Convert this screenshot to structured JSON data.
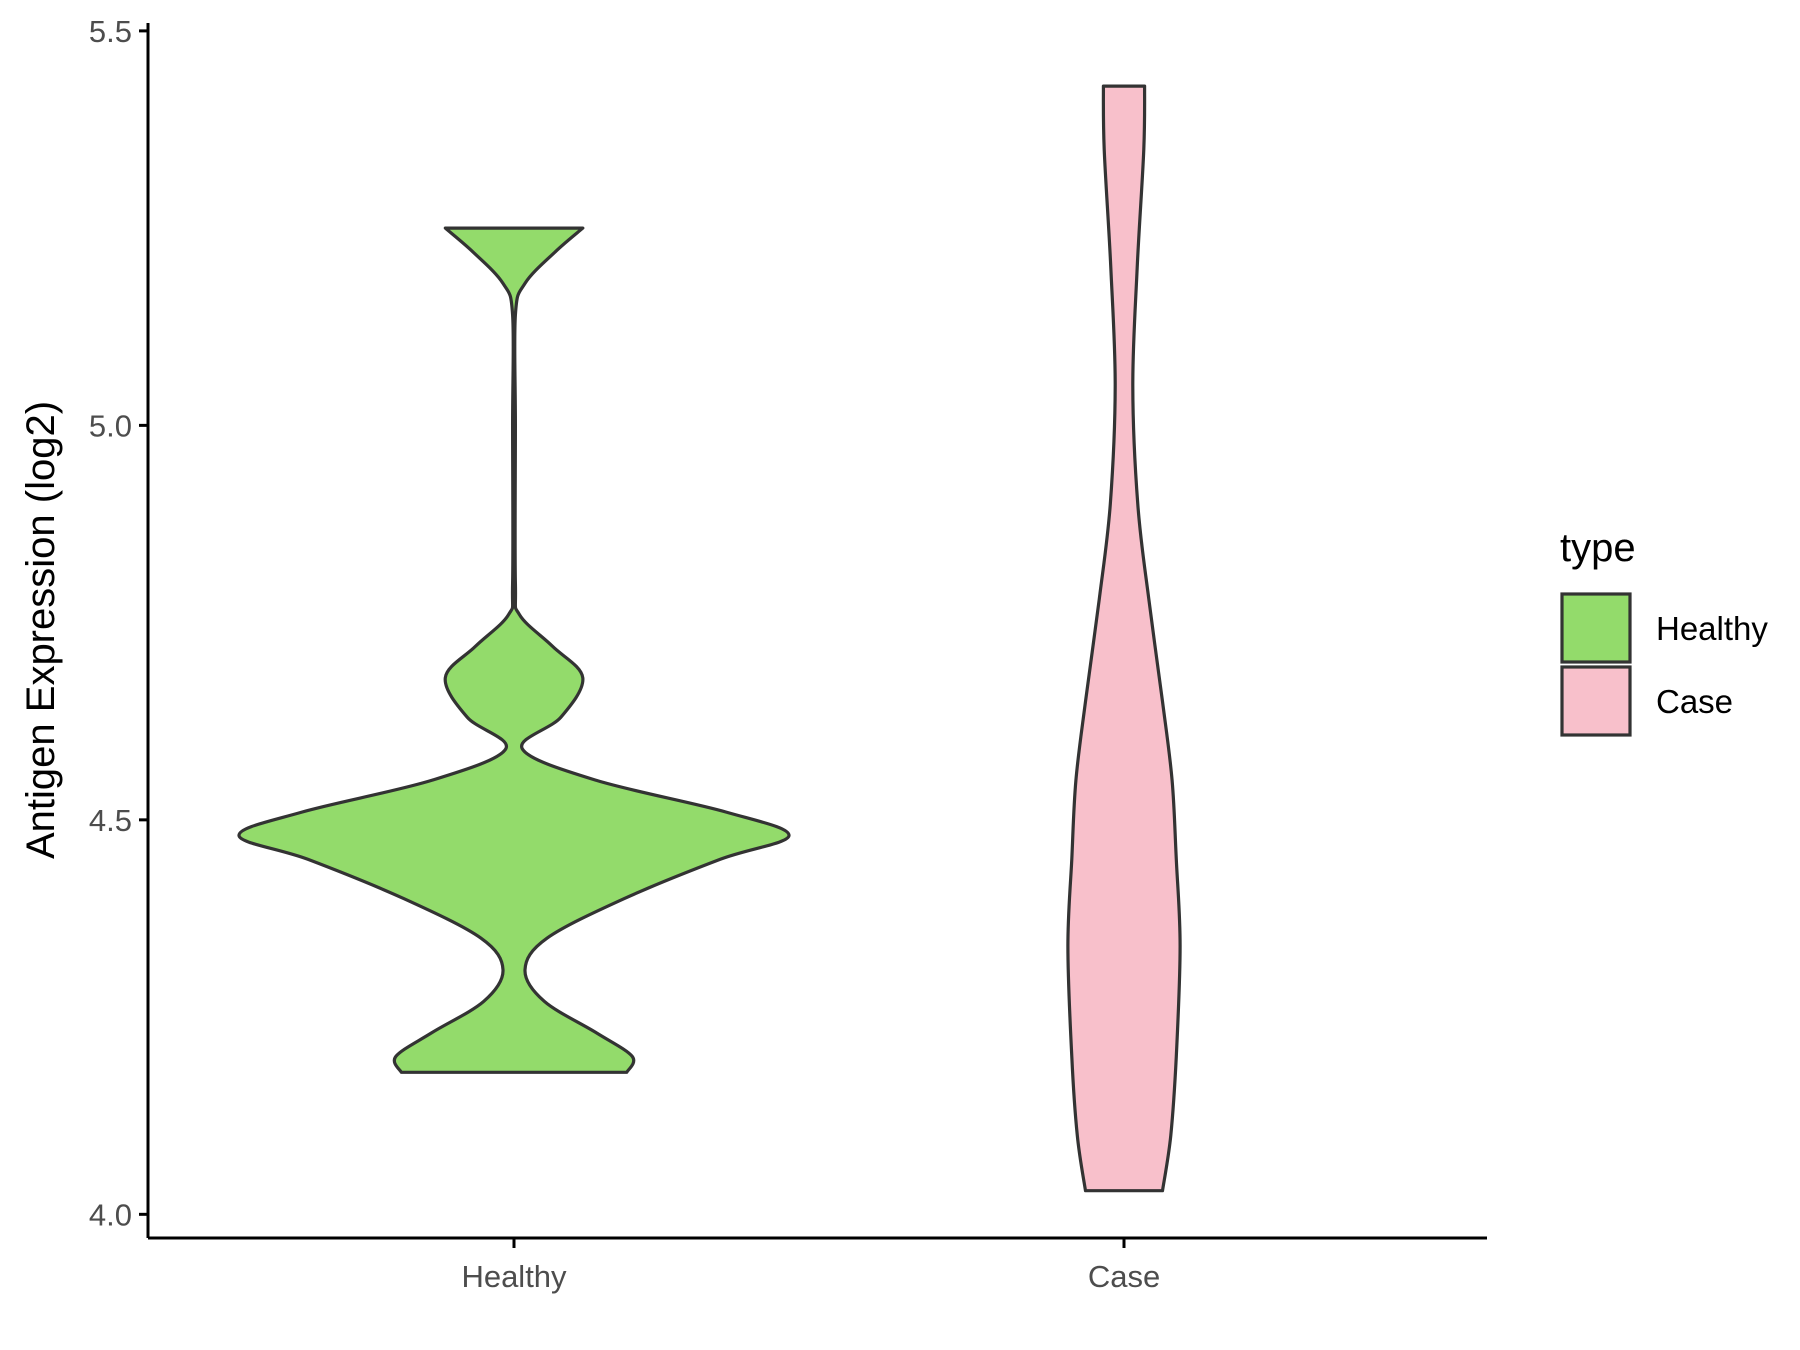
{
  "chart_data": {
    "type": "violin",
    "ylabel": "Antigen Expression (log2)",
    "xlabel": "",
    "categories": [
      "Healthy",
      "Case"
    ],
    "ylim": [
      3.97,
      5.51
    ],
    "yticks": [
      4.0,
      4.5,
      5.0,
      5.5
    ],
    "ytick_labels": [
      "4.0",
      "4.5",
      "5.0",
      "5.5"
    ],
    "grid": false,
    "legend": {
      "title": "type",
      "position": "right",
      "entries": [
        {
          "label": "Healthy",
          "color": "#93DB6B"
        },
        {
          "label": "Case",
          "color": "#F8C0CB"
        }
      ]
    },
    "series": [
      {
        "category": "Healthy",
        "color": "#93DB6B",
        "y_range": [
          4.18,
          5.25
        ],
        "density_profile": [
          {
            "y": 4.18,
            "w": 0.41
          },
          {
            "y": 4.2,
            "w": 0.43
          },
          {
            "y": 4.23,
            "w": 0.3
          },
          {
            "y": 4.27,
            "w": 0.11
          },
          {
            "y": 4.31,
            "w": 0.04
          },
          {
            "y": 4.35,
            "w": 0.12
          },
          {
            "y": 4.4,
            "w": 0.4
          },
          {
            "y": 4.45,
            "w": 0.75
          },
          {
            "y": 4.48,
            "w": 1.0
          },
          {
            "y": 4.51,
            "w": 0.77
          },
          {
            "y": 4.55,
            "w": 0.3
          },
          {
            "y": 4.59,
            "w": 0.03
          },
          {
            "y": 4.63,
            "w": 0.17
          },
          {
            "y": 4.68,
            "w": 0.25
          },
          {
            "y": 4.72,
            "w": 0.14
          },
          {
            "y": 4.76,
            "w": 0.02
          },
          {
            "y": 4.8,
            "w": 0.005
          },
          {
            "y": 5.0,
            "w": 0.005
          },
          {
            "y": 5.14,
            "w": 0.005
          },
          {
            "y": 5.18,
            "w": 0.04
          },
          {
            "y": 5.22,
            "w": 0.15
          },
          {
            "y": 5.25,
            "w": 0.25
          }
        ]
      },
      {
        "category": "Case",
        "color": "#F8C0CB",
        "y_range": [
          4.03,
          5.43
        ],
        "density_profile": [
          {
            "y": 4.03,
            "w": 0.14
          },
          {
            "y": 4.1,
            "w": 0.17
          },
          {
            "y": 4.2,
            "w": 0.19
          },
          {
            "y": 4.34,
            "w": 0.204
          },
          {
            "y": 4.45,
            "w": 0.19
          },
          {
            "y": 4.55,
            "w": 0.175
          },
          {
            "y": 4.65,
            "w": 0.14
          },
          {
            "y": 4.78,
            "w": 0.09
          },
          {
            "y": 4.9,
            "w": 0.05
          },
          {
            "y": 5.05,
            "w": 0.032
          },
          {
            "y": 5.2,
            "w": 0.048
          },
          {
            "y": 5.35,
            "w": 0.072
          },
          {
            "y": 5.43,
            "w": 0.075
          }
        ]
      }
    ]
  },
  "colors": {
    "outline": "#333333",
    "axis": "#000000",
    "tick_text": "#4d4d4d"
  }
}
